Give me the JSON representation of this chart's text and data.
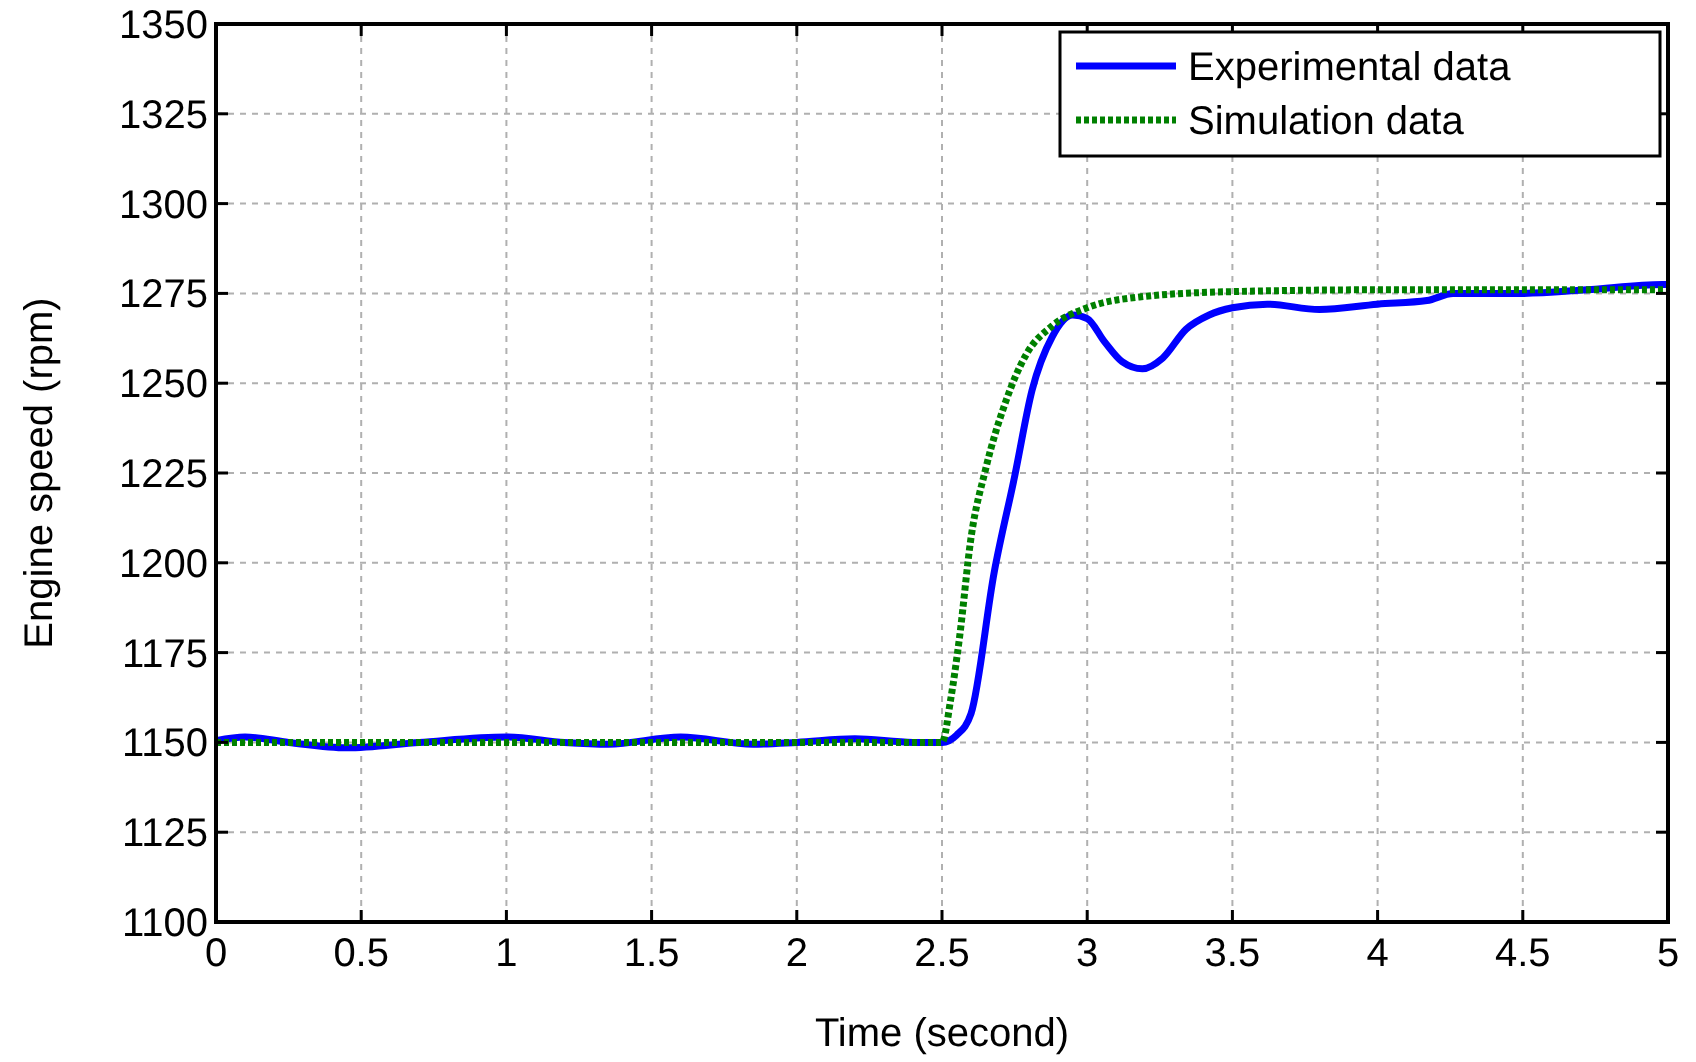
{
  "chart_data": {
    "type": "line",
    "xlabel": "Time (second)",
    "ylabel": "Engine speed (rpm)",
    "xlim": [
      0,
      5
    ],
    "xticks": [
      0,
      0.5,
      1,
      1.5,
      2,
      2.5,
      3,
      3.5,
      4,
      4.5,
      5
    ],
    "ylim": [
      1100,
      1350
    ],
    "yticks": [
      1100,
      1125,
      1150,
      1175,
      1200,
      1225,
      1250,
      1275,
      1300,
      1325,
      1350
    ],
    "grid": true,
    "legend": "top right",
    "marker": "none",
    "series": [
      {
        "name": "Experimental data",
        "color": "#0000ff",
        "line_style": "solid",
        "x": [
          0,
          0.1,
          0.25,
          0.45,
          0.7,
          1.0,
          1.2,
          1.35,
          1.6,
          1.85,
          2.0,
          2.2,
          2.4,
          2.5,
          2.55,
          2.6,
          2.68,
          2.75,
          2.81,
          2.88,
          2.95,
          3.0,
          3.06,
          3.12,
          3.19,
          3.26,
          3.34,
          3.42,
          3.5,
          3.62,
          3.8,
          4.0,
          4.17,
          4.26,
          4.5,
          4.72,
          4.98,
          5.0
        ],
        "values": [
          1150.5,
          1151.5,
          1150,
          1148.5,
          1150,
          1151.5,
          1150,
          1149.5,
          1151.5,
          1149.5,
          1150,
          1151,
          1150,
          1150,
          1152,
          1158,
          1197.5,
          1224,
          1248,
          1263,
          1269,
          1268,
          1261.5,
          1256,
          1254,
          1257,
          1265,
          1269,
          1271,
          1272,
          1270.5,
          1272,
          1273,
          1275,
          1275,
          1276,
          1277.5,
          1277.5
        ]
      },
      {
        "name": "Simulation data",
        "color": "#008000",
        "line_style": "dotted",
        "x": [
          0,
          2.5,
          2.53,
          2.56,
          2.6,
          2.65,
          2.72,
          2.79,
          2.88,
          3.0,
          3.18,
          3.5,
          4.0,
          5.0
        ],
        "values": [
          1150,
          1150,
          1162,
          1179,
          1207,
          1226,
          1245,
          1258,
          1266,
          1271,
          1274,
          1275.5,
          1276,
          1276
        ]
      }
    ]
  }
}
